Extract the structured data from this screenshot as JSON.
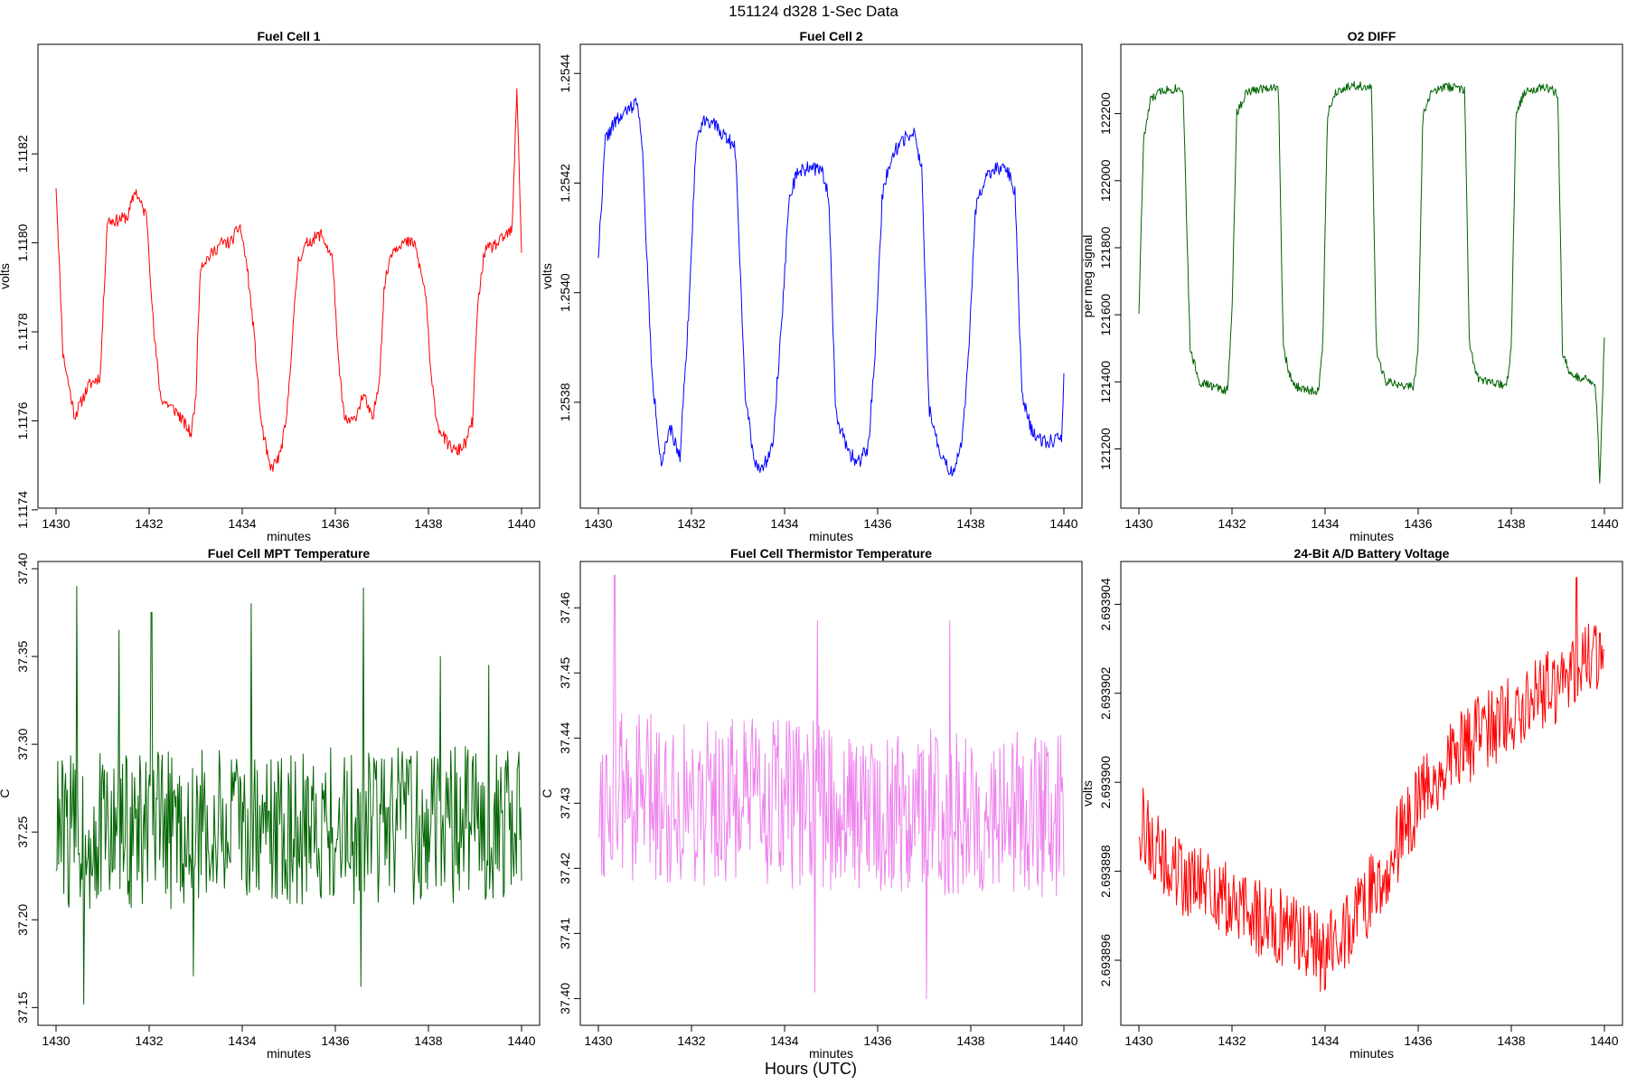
{
  "figure": {
    "title": "151124   d328   1-Sec Data",
    "xlabel": "Hours (UTC)"
  },
  "chart_data": [
    {
      "type": "line",
      "title": "Fuel Cell 1",
      "xlabel": "minutes",
      "ylabel": "volts",
      "color": "#ff0000",
      "xlim": [
        1430,
        1440
      ],
      "ylim": [
        1.11742,
        1.11843
      ],
      "xticks": [
        1430,
        1432,
        1434,
        1436,
        1438,
        1440
      ],
      "yticks": [
        1.1174,
        1.1176,
        1.1178,
        1.118,
        1.1182
      ],
      "ytick_labels": [
        "1.1174",
        "1.1176",
        "1.1178",
        "1.1180",
        "1.1182"
      ],
      "x": [
        1430.0,
        1430.15,
        1430.4,
        1430.7,
        1430.95,
        1431.1,
        1431.3,
        1431.55,
        1431.7,
        1431.85,
        1431.95,
        1432.1,
        1432.25,
        1432.6,
        1432.9,
        1433.0,
        1433.1,
        1433.3,
        1433.55,
        1433.75,
        1433.95,
        1434.1,
        1434.25,
        1434.4,
        1434.6,
        1434.8,
        1434.95,
        1435.05,
        1435.2,
        1435.4,
        1435.7,
        1435.95,
        1436.05,
        1436.2,
        1436.4,
        1436.6,
        1436.8,
        1436.95,
        1437.05,
        1437.2,
        1437.4,
        1437.7,
        1437.95,
        1438.05,
        1438.2,
        1438.4,
        1438.6,
        1438.8,
        1438.95,
        1439.05,
        1439.2,
        1439.5,
        1439.8,
        1439.9,
        1440.0
      ],
      "y": [
        1.11813,
        1.11775,
        1.11761,
        1.11768,
        1.1177,
        1.11805,
        1.11805,
        1.11806,
        1.11812,
        1.11808,
        1.11806,
        1.1178,
        1.11765,
        1.11762,
        1.11757,
        1.11765,
        1.11795,
        1.11797,
        1.118,
        1.118,
        1.11804,
        1.11795,
        1.1178,
        1.1176,
        1.11749,
        1.11752,
        1.1176,
        1.11775,
        1.11796,
        1.118,
        1.11802,
        1.11796,
        1.11775,
        1.1176,
        1.1176,
        1.11766,
        1.1176,
        1.1177,
        1.1179,
        1.11798,
        1.118,
        1.118,
        1.11788,
        1.1177,
        1.11759,
        1.11755,
        1.11753,
        1.11755,
        1.1176,
        1.11785,
        1.11798,
        1.118,
        1.11803,
        1.11835,
        1.11798
      ],
      "noise": 1.4e-05,
      "seed": 11
    },
    {
      "type": "line",
      "title": "Fuel Cell 2",
      "xlabel": "minutes",
      "ylabel": "volts",
      "color": "#0000ff",
      "xlim": [
        1430,
        1440
      ],
      "ylim": [
        1.25362,
        1.25444
      ],
      "xticks": [
        1430,
        1432,
        1434,
        1436,
        1438,
        1440
      ],
      "yticks": [
        1.2538,
        1.254,
        1.2542,
        1.2544
      ],
      "ytick_labels": [
        "1.2538",
        "1.2540",
        "1.2542",
        "1.2544"
      ],
      "x": [
        1430.0,
        1430.15,
        1430.35,
        1430.6,
        1430.85,
        1430.95,
        1431.15,
        1431.35,
        1431.55,
        1431.75,
        1431.95,
        1432.1,
        1432.3,
        1432.55,
        1432.8,
        1432.95,
        1433.15,
        1433.35,
        1433.55,
        1433.75,
        1433.95,
        1434.1,
        1434.3,
        1434.55,
        1434.8,
        1434.95,
        1435.1,
        1435.35,
        1435.6,
        1435.8,
        1435.95,
        1436.1,
        1436.3,
        1436.55,
        1436.8,
        1436.95,
        1437.1,
        1437.35,
        1437.6,
        1437.8,
        1437.95,
        1438.1,
        1438.3,
        1438.55,
        1438.8,
        1438.95,
        1439.1,
        1439.3,
        1439.55,
        1439.8,
        1439.95,
        1440.0
      ],
      "y": [
        1.25407,
        1.25428,
        1.25431,
        1.25433,
        1.25435,
        1.25425,
        1.25385,
        1.25369,
        1.25375,
        1.2537,
        1.25398,
        1.25428,
        1.25432,
        1.2543,
        1.25428,
        1.25426,
        1.25382,
        1.25369,
        1.25368,
        1.25373,
        1.25396,
        1.25418,
        1.25422,
        1.25423,
        1.25422,
        1.25418,
        1.25378,
        1.25371,
        1.25369,
        1.25372,
        1.2539,
        1.25418,
        1.25425,
        1.25428,
        1.25429,
        1.25422,
        1.25379,
        1.2537,
        1.25367,
        1.25372,
        1.25388,
        1.25415,
        1.25421,
        1.25423,
        1.25422,
        1.25418,
        1.25381,
        1.25375,
        1.25373,
        1.25373,
        1.25374,
        1.25384
      ],
      "noise": 1.3e-05,
      "seed": 22
    },
    {
      "type": "line",
      "title": "O2 DIFF",
      "xlabel": "minutes",
      "ylabel": "per meg signal",
      "color": "#006400",
      "xlim": [
        1430,
        1440
      ],
      "ylim": [
        121045,
        122385
      ],
      "xticks": [
        1430,
        1432,
        1434,
        1436,
        1438,
        1440
      ],
      "yticks": [
        121200,
        121400,
        121600,
        121800,
        122000,
        122200
      ],
      "ytick_labels": [
        "121200",
        "121400",
        "121600",
        "121800",
        "122000",
        "122200"
      ],
      "x": [
        1430.0,
        1430.1,
        1430.25,
        1430.5,
        1430.8,
        1430.95,
        1431.1,
        1431.3,
        1431.6,
        1431.9,
        1432.0,
        1432.1,
        1432.3,
        1432.6,
        1432.9,
        1433.0,
        1433.1,
        1433.3,
        1433.6,
        1433.85,
        1433.95,
        1434.05,
        1434.25,
        1434.6,
        1434.9,
        1435.0,
        1435.1,
        1435.3,
        1435.6,
        1435.9,
        1436.0,
        1436.1,
        1436.3,
        1436.6,
        1436.9,
        1437.0,
        1437.1,
        1437.3,
        1437.6,
        1437.9,
        1438.0,
        1438.1,
        1438.3,
        1438.6,
        1438.9,
        1439.0,
        1439.1,
        1439.3,
        1439.6,
        1439.8,
        1439.85,
        1439.9,
        1440.0
      ],
      "y": [
        121610,
        122120,
        122240,
        122270,
        122275,
        122275,
        121500,
        121400,
        121385,
        121375,
        121600,
        122200,
        122260,
        122275,
        122280,
        122270,
        121500,
        121390,
        121375,
        121370,
        121500,
        122200,
        122270,
        122285,
        122280,
        122270,
        121490,
        121400,
        121390,
        121385,
        121500,
        122200,
        122265,
        122280,
        122275,
        122270,
        121500,
        121405,
        121395,
        121390,
        121500,
        122200,
        122265,
        122280,
        122270,
        122250,
        121480,
        121415,
        121410,
        121400,
        121280,
        121100,
        121530
      ],
      "noise": 14,
      "seed": 33
    },
    {
      "type": "line",
      "title": "Fuel Cell MPT Temperature",
      "xlabel": "minutes",
      "ylabel": "C",
      "color": "#006400",
      "xlim": [
        1430,
        1440
      ],
      "ylim": [
        37.144,
        37.4
      ],
      "xticks": [
        1430,
        1432,
        1434,
        1436,
        1438,
        1440
      ],
      "yticks": [
        37.15,
        37.2,
        37.25,
        37.3,
        37.35,
        37.4
      ],
      "ytick_labels": [
        "37.15",
        "37.20",
        "37.25",
        "37.30",
        "37.35",
        "37.40"
      ],
      "x": [
        1430.0,
        1440.0
      ],
      "y": [
        37.25,
        37.255
      ],
      "noise": 0.045,
      "spikes": [
        [
          1430.45,
          37.39
        ],
        [
          1430.6,
          37.152
        ],
        [
          1431.35,
          37.365
        ],
        [
          1432.05,
          37.375
        ],
        [
          1432.95,
          37.168
        ],
        [
          1434.2,
          37.38
        ],
        [
          1436.55,
          37.162
        ],
        [
          1436.6,
          37.389
        ],
        [
          1438.25,
          37.35
        ],
        [
          1439.3,
          37.345
        ]
      ],
      "n": 540,
      "seed": 44
    },
    {
      "type": "line",
      "title": "Fuel Cell Thermistor Temperature",
      "xlabel": "minutes",
      "ylabel": "C",
      "color": "#ee82ee",
      "xlim": [
        1430,
        1440
      ],
      "ylim": [
        37.397,
        37.466
      ],
      "xticks": [
        1430,
        1432,
        1434,
        1436,
        1438,
        1440
      ],
      "yticks": [
        37.4,
        37.41,
        37.42,
        37.43,
        37.44,
        37.45,
        37.46
      ],
      "ytick_labels": [
        "37.40",
        "37.41",
        "37.42",
        "37.43",
        "37.44",
        "37.45",
        "37.46"
      ],
      "x": [
        1430.0,
        1440.0
      ],
      "y": [
        37.431,
        37.428
      ],
      "noise": 0.013,
      "spikes": [
        [
          1430.35,
          37.465
        ],
        [
          1434.65,
          37.401
        ],
        [
          1437.05,
          37.4
        ],
        [
          1437.55,
          37.458
        ],
        [
          1434.7,
          37.458
        ]
      ],
      "n": 560,
      "seed": 55
    },
    {
      "type": "line",
      "title": "24-Bit A/D Battery Voltage",
      "xlabel": "minutes",
      "ylabel": "volts",
      "color": "#ff0000",
      "xlim": [
        1430,
        1440
      ],
      "ylim": [
        2.6938947,
        2.6939048
      ],
      "xticks": [
        1430,
        1432,
        1434,
        1436,
        1438,
        1440
      ],
      "yticks": [
        2.693896,
        2.693898,
        2.6939,
        2.693902,
        2.693904
      ],
      "ytick_labels": [
        "2.693896",
        "2.693898",
        "2.693900",
        "2.693902",
        "2.693904"
      ],
      "x": [
        1430.0,
        1430.5,
        1431.0,
        1431.5,
        1432.0,
        1432.5,
        1433.0,
        1433.5,
        1434.0,
        1434.5,
        1435.0,
        1435.5,
        1436.0,
        1436.5,
        1437.0,
        1437.5,
        1438.0,
        1438.5,
        1439.0,
        1439.5,
        1440.0
      ],
      "y": [
        2.6938992,
        2.6938982,
        2.6938978,
        2.6938976,
        2.6938972,
        2.693897,
        2.6938968,
        2.6938966,
        2.6938962,
        2.6938968,
        2.6938975,
        2.6938985,
        2.6938995,
        2.6939003,
        2.6939008,
        2.6939012,
        2.6939015,
        2.693902,
        2.6939022,
        2.6939027,
        2.693903
      ],
      "noise": 9e-07,
      "spikes": [
        [
          1433.9,
          2.6938953
        ],
        [
          1439.4,
          2.6939046
        ]
      ],
      "n": 560,
      "seed": 66
    }
  ]
}
